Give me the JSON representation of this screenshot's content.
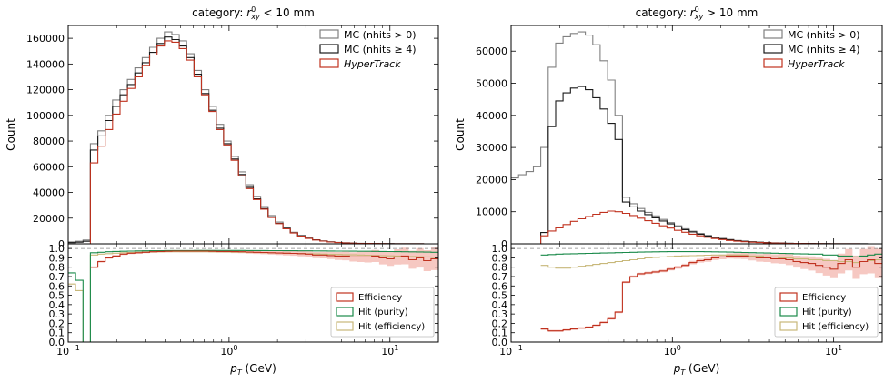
{
  "chart_data": [
    {
      "type": "histogram",
      "title_prefix": "category: ",
      "title_var": "r",
      "title_sup": "0",
      "title_sub": "xy",
      "title_rest": " < 10 mm",
      "top": {
        "ylabel": "Count",
        "ylim": [
          0,
          170000
        ],
        "yticks": [
          0,
          20000,
          40000,
          60000,
          80000,
          100000,
          120000,
          140000,
          160000
        ],
        "legend": [
          "MC (nhits  > 0)",
          "MC (nhits  ≥ 4)",
          "HyperTrack"
        ],
        "legend_position": "top-right",
        "series": [
          {
            "name": "MC (nhits  > 0)",
            "color": "#808080",
            "values": [
              1500,
              2000,
              3000,
              78000,
              88000,
              100000,
              112000,
              120000,
              128000,
              137000,
              145000,
              153000,
              160000,
              165000,
              163000,
              158000,
              148000,
              135000,
              120000,
              107000,
              93000,
              80000,
              68000,
              56000,
              46000,
              37000,
              29000,
              22000,
              17000,
              12500,
              9000,
              6500,
              4500,
              3200,
              2300,
              1600,
              1100,
              800,
              550,
              400,
              300,
              220,
              160,
              120,
              90,
              70,
              55,
              45,
              35,
              30
            ]
          },
          {
            "name": "MC (nhits  ≥ 4)",
            "color": "#1a1a1a",
            "values": [
              900,
              1300,
              2000,
              73000,
              84000,
              96000,
              107000,
              116000,
              124000,
              133000,
              141000,
              149000,
              156000,
              161000,
              159000,
              154000,
              145000,
              132000,
              117000,
              104000,
              90000,
              78000,
              66000,
              54000,
              44000,
              35000,
              27500,
              21000,
              16000,
              12000,
              8600,
              6200,
              4300,
              3100,
              2200,
              1500,
              1050,
              760,
              520,
              380,
              280,
              210,
              150,
              110,
              85,
              65,
              50,
              40,
              32,
              27
            ]
          },
          {
            "name": "HyperTrack",
            "color": "#c0321f",
            "values": [
              0,
              0,
              0,
              63000,
              76000,
              89000,
              101000,
              111000,
              121000,
              130000,
              139000,
              147000,
              154000,
              158000,
              157000,
              152000,
              143000,
              130000,
              116000,
              103000,
              89000,
              77000,
              65000,
              53000,
              43000,
              34500,
              27000,
              20500,
              15700,
              11700,
              8400,
              6000,
              4200,
              3000,
              2100,
              1450,
              1000,
              730,
              500,
              360,
              265,
              200,
              145,
              105,
              80,
              60,
              47,
              37,
              30,
              25
            ]
          }
        ]
      },
      "bottom": {
        "xlabel_var": "p",
        "xlabel_sub": "T",
        "xlabel_unit": " (GeV)",
        "xscale": "log",
        "xlim": [
          0.1,
          20
        ],
        "xticklabels": [
          {
            "base": "10",
            "exp": "−1"
          },
          {
            "base": "10",
            "exp": "0"
          },
          {
            "base": "10",
            "exp": "1"
          }
        ],
        "ylim": [
          0,
          1.05
        ],
        "yticklabels": [
          "0.0",
          "0.1",
          "0.2",
          "0.3",
          "0.4",
          "0.5",
          "0.6",
          "0.7",
          "0.8",
          "0.9",
          "1.0"
        ],
        "legend": [
          "Efficiency",
          "Hit (purity)",
          "Hit (efficiency)"
        ],
        "legend_position": "lower-right",
        "series": [
          {
            "name": "Efficiency",
            "color": "#c0321f",
            "values": [
              null,
              null,
              null,
              0.8,
              0.86,
              0.9,
              0.92,
              0.94,
              0.95,
              0.955,
              0.96,
              0.965,
              0.968,
              0.97,
              0.972,
              0.972,
              0.972,
              0.972,
              0.972,
              0.97,
              0.968,
              0.968,
              0.966,
              0.965,
              0.962,
              0.96,
              0.958,
              0.955,
              0.952,
              0.95,
              0.948,
              0.945,
              0.94,
              0.93,
              0.93,
              0.925,
              0.92,
              0.92,
              0.91,
              0.91,
              0.91,
              0.92,
              0.9,
              0.89,
              0.91,
              0.92,
              0.88,
              0.9,
              0.87,
              0.89
            ]
          },
          {
            "name": "Hit (purity)",
            "color": "#1a8a4a",
            "values": [
              0.74,
              0.66,
              0.0,
              0.955,
              0.96,
              0.965,
              0.968,
              0.97,
              0.972,
              0.974,
              0.975,
              0.976,
              0.977,
              0.978,
              0.978,
              0.978,
              0.978,
              0.979,
              0.979,
              0.979,
              0.979,
              0.979,
              0.979,
              0.979,
              0.978,
              0.978,
              0.978,
              0.977,
              0.977,
              0.976,
              0.976,
              0.975,
              0.975,
              0.974,
              0.974,
              0.973,
              0.972,
              0.972,
              0.971,
              0.97,
              0.97,
              0.969,
              0.968,
              0.967,
              0.966,
              0.965,
              0.964,
              0.963,
              0.962,
              0.96
            ]
          },
          {
            "name": "Hit (efficiency)",
            "color": "#c8b87a",
            "values": [
              0.62,
              0.55,
              0.0,
              0.93,
              0.94,
              0.945,
              0.95,
              0.955,
              0.958,
              0.96,
              0.962,
              0.963,
              0.964,
              0.965,
              0.965,
              0.965,
              0.965,
              0.965,
              0.965,
              0.964,
              0.964,
              0.963,
              0.962,
              0.961,
              0.96,
              0.958,
              0.956,
              0.954,
              0.952,
              0.95,
              0.948,
              0.946,
              0.944,
              0.942,
              0.94,
              0.938,
              0.936,
              0.934,
              0.932,
              0.93,
              0.928,
              0.926,
              0.924,
              0.922,
              0.92,
              0.918,
              0.915,
              0.912,
              0.91,
              0.905
            ]
          }
        ]
      }
    },
    {
      "type": "histogram",
      "title_prefix": "category: ",
      "title_var": "r",
      "title_sup": "0",
      "title_sub": "xy",
      "title_rest": " > 10 mm",
      "top": {
        "ylabel": "Count",
        "ylim": [
          0,
          68000
        ],
        "yticks": [
          0,
          10000,
          20000,
          30000,
          40000,
          50000,
          60000
        ],
        "legend": [
          "MC (nhits  > 0)",
          "MC (nhits  ≥ 4)",
          "HyperTrack"
        ],
        "legend_position": "top-right",
        "series": [
          {
            "name": "MC (nhits  > 0)",
            "color": "#808080",
            "values": [
              20500,
              21500,
              22500,
              24000,
              30000,
              55000,
              62500,
              64500,
              65500,
              66000,
              65000,
              62000,
              57000,
              51000,
              40000,
              14500,
              12500,
              11000,
              9800,
              8700,
              7600,
              6600,
              5600,
              4700,
              3900,
              3200,
              2600,
              2100,
              1700,
              1350,
              1050,
              820,
              640,
              500,
              390,
              300,
              230,
              180,
              140,
              110,
              85,
              65,
              50,
              40,
              32,
              26,
              20,
              16,
              13,
              10
            ]
          },
          {
            "name": "MC (nhits  ≥ 4)",
            "color": "#1a1a1a",
            "values": [
              0,
              0,
              0,
              0,
              3500,
              36500,
              44500,
              47000,
              48500,
              49000,
              48000,
              45500,
              42000,
              37500,
              32500,
              13000,
              11500,
              10200,
              9100,
              8100,
              7100,
              6200,
              5300,
              4400,
              3700,
              3000,
              2450,
              1980,
              1600,
              1270,
              990,
              780,
              610,
              480,
              370,
              285,
              220,
              170,
              130,
              100,
              80,
              62,
              48,
              38,
              30,
              24,
              19,
              15,
              12,
              9
            ]
          },
          {
            "name": "HyperTrack",
            "color": "#c0321f",
            "values": [
              0,
              0,
              0,
              0,
              2500,
              4000,
              5000,
              6000,
              7000,
              7800,
              8500,
              9200,
              9800,
              10200,
              10000,
              9500,
              8800,
              8000,
              7200,
              6400,
              5600,
              4900,
              4200,
              3600,
              3000,
              2500,
              2050,
              1650,
              1320,
              1050,
              830,
              650,
              510,
              400,
              310,
              240,
              185,
              145,
              110,
              85,
              66,
              51,
              40,
              31,
              25,
              20,
              16,
              12,
              10,
              8
            ]
          }
        ]
      },
      "bottom": {
        "xlabel_var": "p",
        "xlabel_sub": "T",
        "xlabel_unit": " (GeV)",
        "xscale": "log",
        "xlim": [
          0.1,
          20
        ],
        "xticklabels": [
          {
            "base": "10",
            "exp": "−1"
          },
          {
            "base": "10",
            "exp": "0"
          },
          {
            "base": "10",
            "exp": "1"
          }
        ],
        "ylim": [
          0,
          1.05
        ],
        "yticklabels": [
          "0.0",
          "0.1",
          "0.2",
          "0.3",
          "0.4",
          "0.5",
          "0.6",
          "0.7",
          "0.8",
          "0.9",
          "1.0"
        ],
        "legend": [
          "Efficiency",
          "Hit (purity)",
          "Hit (efficiency)"
        ],
        "legend_position": "lower-right",
        "series": [
          {
            "name": "Efficiency",
            "color": "#c0321f",
            "values": [
              null,
              null,
              null,
              null,
              0.14,
              0.12,
              0.12,
              0.13,
              0.14,
              0.15,
              0.16,
              0.18,
              0.21,
              0.25,
              0.32,
              0.64,
              0.7,
              0.73,
              0.74,
              0.75,
              0.76,
              0.78,
              0.8,
              0.82,
              0.85,
              0.87,
              0.88,
              0.9,
              0.91,
              0.92,
              0.92,
              0.92,
              0.91,
              0.9,
              0.9,
              0.89,
              0.89,
              0.88,
              0.86,
              0.85,
              0.84,
              0.82,
              0.8,
              0.78,
              0.84,
              0.88,
              0.8,
              0.86,
              0.88,
              0.84
            ]
          },
          {
            "name": "Hit (purity)",
            "color": "#1a8a4a",
            "values": [
              null,
              null,
              null,
              null,
              0.93,
              0.935,
              0.94,
              0.942,
              0.944,
              0.946,
              0.948,
              0.95,
              0.952,
              0.954,
              0.956,
              0.958,
              0.96,
              0.962,
              0.963,
              0.964,
              0.965,
              0.966,
              0.966,
              0.966,
              0.966,
              0.966,
              0.965,
              0.964,
              0.963,
              0.962,
              0.96,
              0.958,
              0.956,
              0.954,
              0.952,
              0.95,
              0.948,
              0.946,
              0.944,
              0.942,
              0.94,
              0.94,
              0.93,
              0.93,
              0.92,
              0.92,
              0.91,
              0.92,
              0.93,
              0.94
            ]
          },
          {
            "name": "Hit (efficiency)",
            "color": "#c8b87a",
            "values": [
              null,
              null,
              null,
              null,
              0.82,
              0.8,
              0.79,
              0.79,
              0.8,
              0.81,
              0.82,
              0.83,
              0.84,
              0.85,
              0.86,
              0.87,
              0.88,
              0.89,
              0.9,
              0.905,
              0.91,
              0.915,
              0.92,
              0.922,
              0.924,
              0.926,
              0.928,
              0.93,
              0.93,
              0.93,
              0.93,
              0.93,
              0.92,
              0.92,
              0.91,
              0.91,
              0.9,
              0.9,
              0.89,
              0.89,
              0.88,
              0.88,
              0.87,
              0.87,
              0.86,
              0.86,
              0.85,
              0.86,
              0.87,
              0.88
            ]
          }
        ]
      }
    }
  ]
}
